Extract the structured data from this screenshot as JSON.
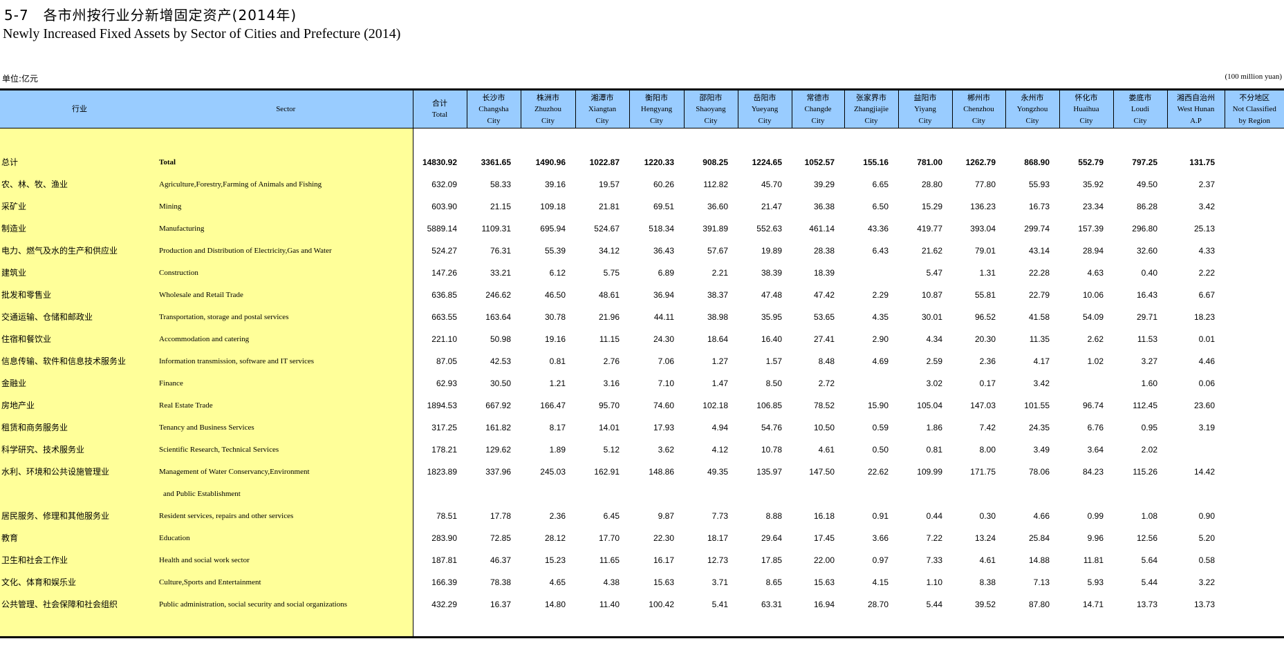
{
  "title_zh": "5-7　各市州按行业分新增固定资产(2014年)",
  "title_en": "Newly Increased Fixed Assets  by Sector of Cities and Prefecture (2014)",
  "unit_zh": "单位:亿元",
  "unit_en": "(100 million yuan)",
  "header": {
    "sector_zh": "行业",
    "sector_en": "Sector",
    "columns": [
      {
        "zh": "合计",
        "en1": "Total",
        "en2": ""
      },
      {
        "zh": "长沙市",
        "en1": "Changsha",
        "en2": "City"
      },
      {
        "zh": "株洲市",
        "en1": "Zhuzhou",
        "en2": "City"
      },
      {
        "zh": "湘潭市",
        "en1": "Xiangtan",
        "en2": "City"
      },
      {
        "zh": "衡阳市",
        "en1": "Hengyang",
        "en2": "City"
      },
      {
        "zh": "邵阳市",
        "en1": "Shaoyang",
        "en2": "City"
      },
      {
        "zh": "岳阳市",
        "en1": "Yueyang",
        "en2": "City"
      },
      {
        "zh": "常德市",
        "en1": "Changde",
        "en2": "City"
      },
      {
        "zh": "张家界市",
        "en1": "Zhangjiajie",
        "en2": "City"
      },
      {
        "zh": "益阳市",
        "en1": "Yiyang",
        "en2": "City"
      },
      {
        "zh": "郴州市",
        "en1": "Chenzhou",
        "en2": "City"
      },
      {
        "zh": "永州市",
        "en1": "Yongzhou",
        "en2": "City"
      },
      {
        "zh": "怀化市",
        "en1": "Huaihua",
        "en2": "City"
      },
      {
        "zh": "娄底市",
        "en1": "Loudi",
        "en2": "City"
      },
      {
        "zh": "湘西自治州",
        "en1": "West Hunan",
        "en2": "A.P"
      },
      {
        "zh": "不分地区",
        "en1": "Not Classified",
        "en2": "by Region"
      }
    ]
  },
  "rows": [
    {
      "zh": "总计",
      "en": "Total",
      "en2": "",
      "values": [
        "14830.92",
        "3361.65",
        "1490.96",
        "1022.87",
        "1220.33",
        "908.25",
        "1224.65",
        "1052.57",
        "155.16",
        "781.00",
        "1262.79",
        "868.90",
        "552.79",
        "797.25",
        "131.75",
        ""
      ]
    },
    {
      "zh": "农、林、牧、渔业",
      "en": "Agriculture,Forestry,Farming of Animals and Fishing",
      "en2": "",
      "values": [
        "632.09",
        "58.33",
        "39.16",
        "19.57",
        "60.26",
        "112.82",
        "45.70",
        "39.29",
        "6.65",
        "28.80",
        "77.80",
        "55.93",
        "35.92",
        "49.50",
        "2.37",
        ""
      ]
    },
    {
      "zh": "采矿业",
      "en": "Mining",
      "en2": "",
      "values": [
        "603.90",
        "21.15",
        "109.18",
        "21.81",
        "69.51",
        "36.60",
        "21.47",
        "36.38",
        "6.50",
        "15.29",
        "136.23",
        "16.73",
        "23.34",
        "86.28",
        "3.42",
        ""
      ]
    },
    {
      "zh": "制造业",
      "en": "Manufacturing",
      "en2": "",
      "values": [
        "5889.14",
        "1109.31",
        "695.94",
        "524.67",
        "518.34",
        "391.89",
        "552.63",
        "461.14",
        "43.36",
        "419.77",
        "393.04",
        "299.74",
        "157.39",
        "296.80",
        "25.13",
        ""
      ]
    },
    {
      "zh": "电力、燃气及水的生产和供应业",
      "en": "Production and Distribution of Electricity,Gas and Water",
      "en2": "",
      "values": [
        "524.27",
        "76.31",
        "55.39",
        "34.12",
        "36.43",
        "57.67",
        "19.89",
        "28.38",
        "6.43",
        "21.62",
        "79.01",
        "43.14",
        "28.94",
        "32.60",
        "4.33",
        ""
      ]
    },
    {
      "zh": "建筑业",
      "en": "Construction",
      "en2": "",
      "values": [
        "147.26",
        "33.21",
        "6.12",
        "5.75",
        "6.89",
        "2.21",
        "38.39",
        "18.39",
        "",
        "5.47",
        "1.31",
        "22.28",
        "4.63",
        "0.40",
        "2.22",
        ""
      ]
    },
    {
      "zh": "批发和零售业",
      "en": "Wholesale and Retail Trade",
      "en2": "",
      "values": [
        "636.85",
        "246.62",
        "46.50",
        "48.61",
        "36.94",
        "38.37",
        "47.48",
        "47.42",
        "2.29",
        "10.87",
        "55.81",
        "22.79",
        "10.06",
        "16.43",
        "6.67",
        ""
      ]
    },
    {
      "zh": "交通运输、仓储和邮政业",
      "en": "Transportation, storage and postal services",
      "en2": "",
      "values": [
        "663.55",
        "163.64",
        "30.78",
        "21.96",
        "44.11",
        "38.98",
        "35.95",
        "53.65",
        "4.35",
        "30.01",
        "96.52",
        "41.58",
        "54.09",
        "29.71",
        "18.23",
        ""
      ]
    },
    {
      "zh": "住宿和餐饮业",
      "en": "Accommodation and catering",
      "en2": "",
      "values": [
        "221.10",
        "50.98",
        "19.16",
        "11.15",
        "24.30",
        "18.64",
        "16.40",
        "27.41",
        "2.90",
        "4.34",
        "20.30",
        "11.35",
        "2.62",
        "11.53",
        "0.01",
        ""
      ]
    },
    {
      "zh": "信息传输、软件和信息技术服务业",
      "en": "Information transmission, software and IT services",
      "en2": "",
      "values": [
        "87.05",
        "42.53",
        "0.81",
        "2.76",
        "7.06",
        "1.27",
        "1.57",
        "8.48",
        "4.69",
        "2.59",
        "2.36",
        "4.17",
        "1.02",
        "3.27",
        "4.46",
        ""
      ]
    },
    {
      "zh": "金融业",
      "en": "Finance",
      "en2": "",
      "values": [
        "62.93",
        "30.50",
        "1.21",
        "3.16",
        "7.10",
        "1.47",
        "8.50",
        "2.72",
        "",
        "3.02",
        "0.17",
        "3.42",
        "",
        "1.60",
        "0.06",
        ""
      ]
    },
    {
      "zh": "房地产业",
      "en": "Real Estate Trade",
      "en2": "",
      "values": [
        "1894.53",
        "667.92",
        "166.47",
        "95.70",
        "74.60",
        "102.18",
        "106.85",
        "78.52",
        "15.90",
        "105.04",
        "147.03",
        "101.55",
        "96.74",
        "112.45",
        "23.60",
        ""
      ]
    },
    {
      "zh": "租赁和商务服务业",
      "en": "Tenancy and Business Services",
      "en2": "",
      "values": [
        "317.25",
        "161.82",
        "8.17",
        "14.01",
        "17.93",
        "4.94",
        "54.76",
        "10.50",
        "0.59",
        "1.86",
        "7.42",
        "24.35",
        "6.76",
        "0.95",
        "3.19",
        ""
      ]
    },
    {
      "zh": "科学研究、技术服务业",
      "en": "Scientific Research, Technical Services",
      "en2": "",
      "values": [
        "178.21",
        "129.62",
        "1.89",
        "5.12",
        "3.62",
        "4.12",
        "10.78",
        "4.61",
        "0.50",
        "0.81",
        "8.00",
        "3.49",
        "3.64",
        "2.02",
        "",
        ""
      ]
    },
    {
      "zh": "水利、环境和公共设施管理业",
      "en": "Management of Water Conservancy,Environment",
      "en2": "and Public Establishment",
      "values": [
        "1823.89",
        "337.96",
        "245.03",
        "162.91",
        "148.86",
        "49.35",
        "135.97",
        "147.50",
        "22.62",
        "109.99",
        "171.75",
        "78.06",
        "84.23",
        "115.26",
        "14.42",
        ""
      ]
    },
    {
      "zh": "居民服务、修理和其他服务业",
      "en": "Resident services, repairs and other services",
      "en2": "",
      "values": [
        "78.51",
        "17.78",
        "2.36",
        "6.45",
        "9.87",
        "7.73",
        "8.88",
        "16.18",
        "0.91",
        "0.44",
        "0.30",
        "4.66",
        "0.99",
        "1.08",
        "0.90",
        ""
      ]
    },
    {
      "zh": "教育",
      "en": "Education",
      "en2": "",
      "values": [
        "283.90",
        "72.85",
        "28.12",
        "17.70",
        "22.30",
        "18.17",
        "29.64",
        "17.45",
        "3.66",
        "7.22",
        "13.24",
        "25.84",
        "9.96",
        "12.56",
        "5.20",
        ""
      ]
    },
    {
      "zh": "卫生和社会工作业",
      "en": "Health and social work sector",
      "en2": "",
      "values": [
        "187.81",
        "46.37",
        "15.23",
        "11.65",
        "16.17",
        "12.73",
        "17.85",
        "22.00",
        "0.97",
        "7.33",
        "4.61",
        "14.88",
        "11.81",
        "5.64",
        "0.58",
        ""
      ]
    },
    {
      "zh": "文化、体育和娱乐业",
      "en": "Culture,Sports and Entertainment",
      "en2": "",
      "values": [
        "166.39",
        "78.38",
        "4.65",
        "4.38",
        "15.63",
        "3.71",
        "8.65",
        "15.63",
        "4.15",
        "1.10",
        "8.38",
        "7.13",
        "5.93",
        "5.44",
        "3.22",
        ""
      ]
    },
    {
      "zh": "公共管理、社会保障和社会组织",
      "en": "Public administration, social security and social organizations",
      "en2": "",
      "values": [
        "432.29",
        "16.37",
        "14.80",
        "11.40",
        "100.42",
        "5.41",
        "63.31",
        "16.94",
        "28.70",
        "5.44",
        "39.52",
        "87.80",
        "14.71",
        "13.73",
        "13.73",
        ""
      ]
    }
  ],
  "colors": {
    "header_bg": "#99ccff",
    "sector_bg": "#ffff99"
  }
}
